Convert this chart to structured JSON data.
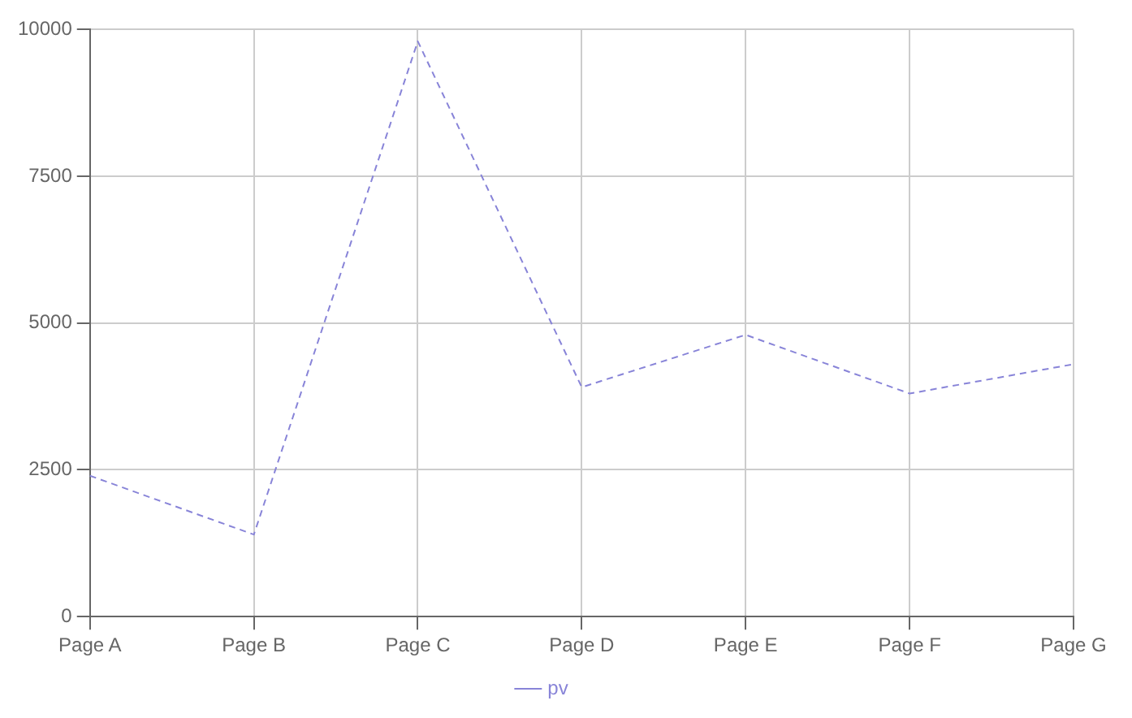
{
  "chart_data": {
    "type": "line",
    "categories": [
      "Page A",
      "Page B",
      "Page C",
      "Page D",
      "Page E",
      "Page F",
      "Page G"
    ],
    "series": [
      {
        "name": "pv",
        "color": "#8884d8",
        "values": [
          2400,
          1398,
          9800,
          3908,
          4800,
          3800,
          4300
        ]
      }
    ],
    "ylim": [
      0,
      10000
    ],
    "yticks": [
      0,
      2500,
      5000,
      7500,
      10000
    ],
    "grid": true,
    "legend": "bottom",
    "marker": "none",
    "line_style": "dashed"
  }
}
